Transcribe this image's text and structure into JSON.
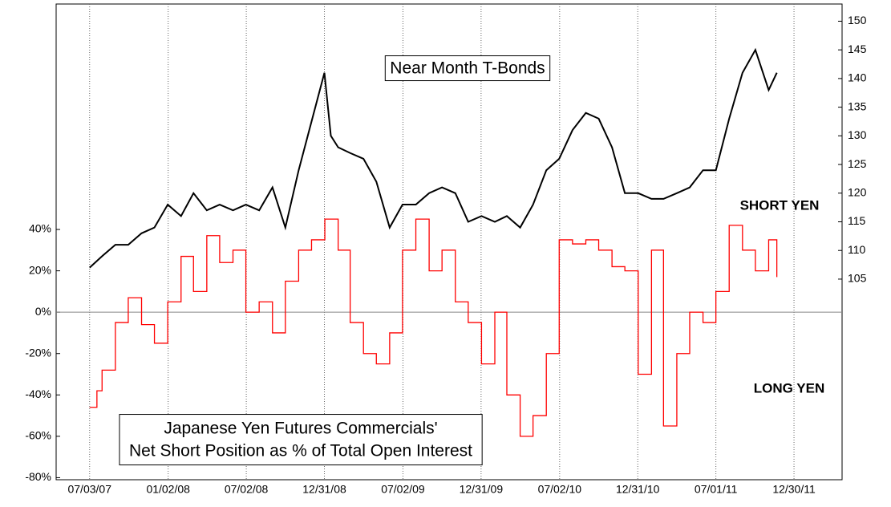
{
  "chart_data": {
    "type": "line",
    "annotations": [
      "Near Month T-Bonds",
      "Japanese Yen Futures Commercials'",
      "Net Short Position as % of Total Open Interest",
      "SHORT YEN",
      "LONG YEN"
    ],
    "xlim": [
      "2007-04-16",
      "2012-04-20"
    ],
    "xticks": [
      {
        "value": "2007-07-03",
        "label": "07/03/07"
      },
      {
        "value": "2008-01-02",
        "label": "01/02/08"
      },
      {
        "value": "2008-07-02",
        "label": "07/02/08"
      },
      {
        "value": "2008-12-31",
        "label": "12/31/08"
      },
      {
        "value": "2009-07-02",
        "label": "07/02/09"
      },
      {
        "value": "2009-12-31",
        "label": "12/31/09"
      },
      {
        "value": "2010-07-02",
        "label": "07/02/10"
      },
      {
        "value": "2010-12-31",
        "label": "12/31/10"
      },
      {
        "value": "2011-07-01",
        "label": "07/01/11"
      },
      {
        "value": "2011-12-30",
        "label": "12/30/11"
      }
    ],
    "ylim": [
      -81,
      149
    ],
    "yticks": [
      {
        "value": -80,
        "label": "-80%"
      },
      {
        "value": -60,
        "label": "-60%"
      },
      {
        "value": -40,
        "label": "-40%"
      },
      {
        "value": -20,
        "label": "-20%"
      },
      {
        "value": 0,
        "label": "0%"
      },
      {
        "value": 20,
        "label": "20%"
      },
      {
        "value": 40,
        "label": "40%"
      }
    ],
    "y2lim": [
      70,
      153
    ],
    "y2ticks": [
      105,
      110,
      115,
      120,
      125,
      130,
      135,
      140,
      145,
      150
    ],
    "series": [
      {
        "color": "#000000",
        "axis": "y2",
        "x": [
          "2007-07-03",
          "2007-08-01",
          "2007-09-01",
          "2007-10-01",
          "2007-11-01",
          "2007-12-01",
          "2008-01-01",
          "2008-02-01",
          "2008-03-01",
          "2008-04-01",
          "2008-05-01",
          "2008-06-01",
          "2008-07-01",
          "2008-08-01",
          "2008-09-01",
          "2008-10-01",
          "2008-11-01",
          "2008-12-31",
          "2009-01-15",
          "2009-02-01",
          "2009-03-01",
          "2009-04-01",
          "2009-05-01",
          "2009-06-01",
          "2009-07-01",
          "2009-08-01",
          "2009-09-01",
          "2009-10-01",
          "2009-11-01",
          "2009-12-01",
          "2010-01-01",
          "2010-02-01",
          "2010-03-01",
          "2010-04-01",
          "2010-05-01",
          "2010-06-01",
          "2010-07-01",
          "2010-08-01",
          "2010-09-01",
          "2010-10-01",
          "2010-11-01",
          "2010-12-01",
          "2011-01-01",
          "2011-02-01",
          "2011-03-01",
          "2011-04-01",
          "2011-05-01",
          "2011-06-01",
          "2011-07-01",
          "2011-08-01",
          "2011-09-01",
          "2011-10-01",
          "2011-11-01",
          "2011-11-20"
        ],
        "values": [
          107,
          109,
          111,
          111,
          113,
          114,
          118,
          116,
          120,
          117,
          118,
          117,
          118,
          117,
          121,
          114,
          124,
          141,
          130,
          128,
          127,
          126,
          122,
          114,
          118,
          118,
          120,
          121,
          120,
          115,
          116,
          115,
          116,
          114,
          118,
          124,
          126,
          131,
          134,
          133,
          128,
          120,
          120,
          119,
          119,
          120,
          121,
          124,
          124,
          133,
          141,
          145,
          138,
          141
        ]
      },
      {
        "color": "#ff0000",
        "axis": "y",
        "x": [
          "2007-07-03",
          "2007-07-20",
          "2007-08-01",
          "2007-09-01",
          "2007-10-01",
          "2007-11-01",
          "2007-12-01",
          "2008-01-01",
          "2008-02-01",
          "2008-03-01",
          "2008-04-01",
          "2008-05-01",
          "2008-06-01",
          "2008-07-01",
          "2008-08-01",
          "2008-09-01",
          "2008-10-01",
          "2008-11-01",
          "2008-12-01",
          "2009-01-01",
          "2009-02-01",
          "2009-03-01",
          "2009-04-01",
          "2009-05-01",
          "2009-06-01",
          "2009-07-01",
          "2009-08-01",
          "2009-09-01",
          "2009-10-01",
          "2009-11-01",
          "2009-12-01",
          "2010-01-01",
          "2010-02-01",
          "2010-03-01",
          "2010-04-01",
          "2010-05-01",
          "2010-06-01",
          "2010-07-01",
          "2010-08-01",
          "2010-09-01",
          "2010-10-01",
          "2010-11-01",
          "2010-12-01",
          "2011-01-01",
          "2011-02-01",
          "2011-03-01",
          "2011-04-01",
          "2011-05-01",
          "2011-06-01",
          "2011-07-01",
          "2011-08-01",
          "2011-09-01",
          "2011-10-01",
          "2011-11-01",
          "2011-11-20"
        ],
        "values": [
          -46,
          -38,
          -28,
          -5,
          7,
          -6,
          -15,
          5,
          27,
          10,
          37,
          24,
          30,
          0,
          5,
          -10,
          15,
          30,
          35,
          45,
          30,
          -5,
          -20,
          -25,
          -10,
          30,
          45,
          20,
          30,
          5,
          -5,
          -25,
          0,
          -40,
          -60,
          -50,
          -20,
          35,
          33,
          35,
          30,
          22,
          20,
          -30,
          30,
          -55,
          -20,
          0,
          -5,
          10,
          42,
          30,
          20,
          35,
          17
        ]
      }
    ]
  }
}
